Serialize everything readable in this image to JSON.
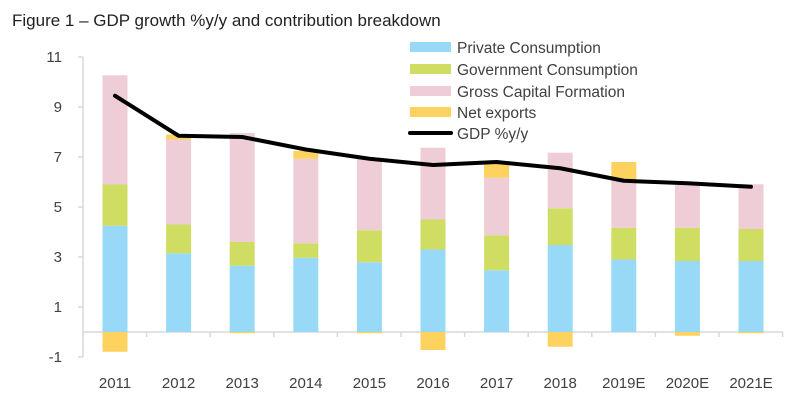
{
  "chart_data": {
    "type": "bar",
    "stacked": true,
    "title": "Figure 1 – GDP growth %y/y and contribution breakdown",
    "xlabel": "",
    "ylabel": "",
    "ylim": [
      -1,
      11
    ],
    "yticks": [
      "-1",
      "1",
      "3",
      "5",
      "7",
      "9",
      "11"
    ],
    "grid": false,
    "legend_position": "top-right",
    "categories": [
      "2011",
      "2012",
      "2013",
      "2014",
      "2015",
      "2016",
      "2017",
      "2018",
      "2019E",
      "2020E",
      "2021E"
    ],
    "series": [
      {
        "name": "Private Consumption",
        "color": "#97d9f7",
        "values": [
          4.25,
          3.15,
          2.65,
          2.97,
          2.79,
          3.3,
          2.47,
          3.48,
          2.9,
          2.84,
          2.84
        ]
      },
      {
        "name": "Government Consumption",
        "color": "#cfdd63",
        "values": [
          1.65,
          1.15,
          0.95,
          0.58,
          1.28,
          1.2,
          1.4,
          1.47,
          1.27,
          1.33,
          1.28
        ]
      },
      {
        "name": "Gross Capital Formation",
        "color": "#eecdd6",
        "values": [
          4.37,
          3.4,
          4.36,
          3.38,
          2.9,
          2.87,
          2.3,
          2.22,
          1.91,
          1.71,
          1.79
        ]
      },
      {
        "name": "Net exports",
        "color": "#fed25f",
        "values": [
          -0.79,
          0.2,
          -0.05,
          0.31,
          -0.05,
          -0.72,
          0.58,
          -0.59,
          0.72,
          -0.15,
          -0.05
        ]
      }
    ],
    "line": {
      "name": "GDP %y/y",
      "color": "#000000",
      "values": [
        9.45,
        7.85,
        7.8,
        7.3,
        6.93,
        6.68,
        6.8,
        6.55,
        6.05,
        5.95,
        5.81
      ]
    }
  }
}
